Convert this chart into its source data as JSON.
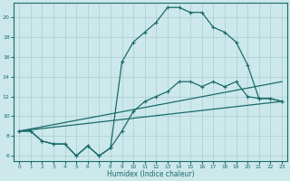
{
  "xlabel": "Humidex (Indice chaleur)",
  "bg_color": "#cce8ea",
  "grid_color": "#aacdd0",
  "line_color": "#1a6b6b",
  "xlim": [
    -0.5,
    23.5
  ],
  "ylim": [
    5.5,
    21.5
  ],
  "xticks": [
    0,
    1,
    2,
    3,
    4,
    5,
    6,
    7,
    8,
    9,
    10,
    11,
    12,
    13,
    14,
    15,
    16,
    17,
    18,
    19,
    20,
    21,
    22,
    23
  ],
  "yticks": [
    6,
    8,
    10,
    12,
    14,
    16,
    18,
    20
  ],
  "curve_x": [
    0,
    1,
    2,
    3,
    4,
    5,
    6,
    7,
    8,
    9,
    10,
    11,
    12,
    13,
    14,
    15,
    16,
    17,
    18,
    19,
    20,
    21,
    22,
    23
  ],
  "curve_y": [
    8.5,
    8.5,
    7.5,
    7.2,
    7.2,
    6.0,
    7.0,
    6.0,
    6.8,
    15.5,
    17.5,
    18.5,
    19.5,
    21.0,
    21.0,
    20.5,
    20.5,
    19.0,
    18.5,
    17.5,
    15.2,
    11.8,
    11.8,
    11.5
  ],
  "jagged_x": [
    0,
    1,
    2,
    3,
    4,
    5,
    6,
    7,
    8,
    9,
    10,
    11,
    12,
    13,
    14,
    15,
    16,
    17,
    18,
    19,
    20,
    21,
    22,
    23
  ],
  "jagged_y": [
    8.5,
    8.5,
    7.5,
    7.2,
    7.2,
    6.0,
    7.0,
    6.0,
    6.8,
    8.5,
    10.5,
    11.5,
    12.0,
    12.5,
    13.5,
    13.5,
    13.0,
    13.5,
    13.0,
    13.5,
    12.0,
    11.8,
    11.8,
    11.5
  ],
  "line1_x": [
    0,
    23
  ],
  "line1_y": [
    8.5,
    11.5
  ],
  "line2_x": [
    0,
    23
  ],
  "line2_y": [
    8.5,
    13.5
  ]
}
